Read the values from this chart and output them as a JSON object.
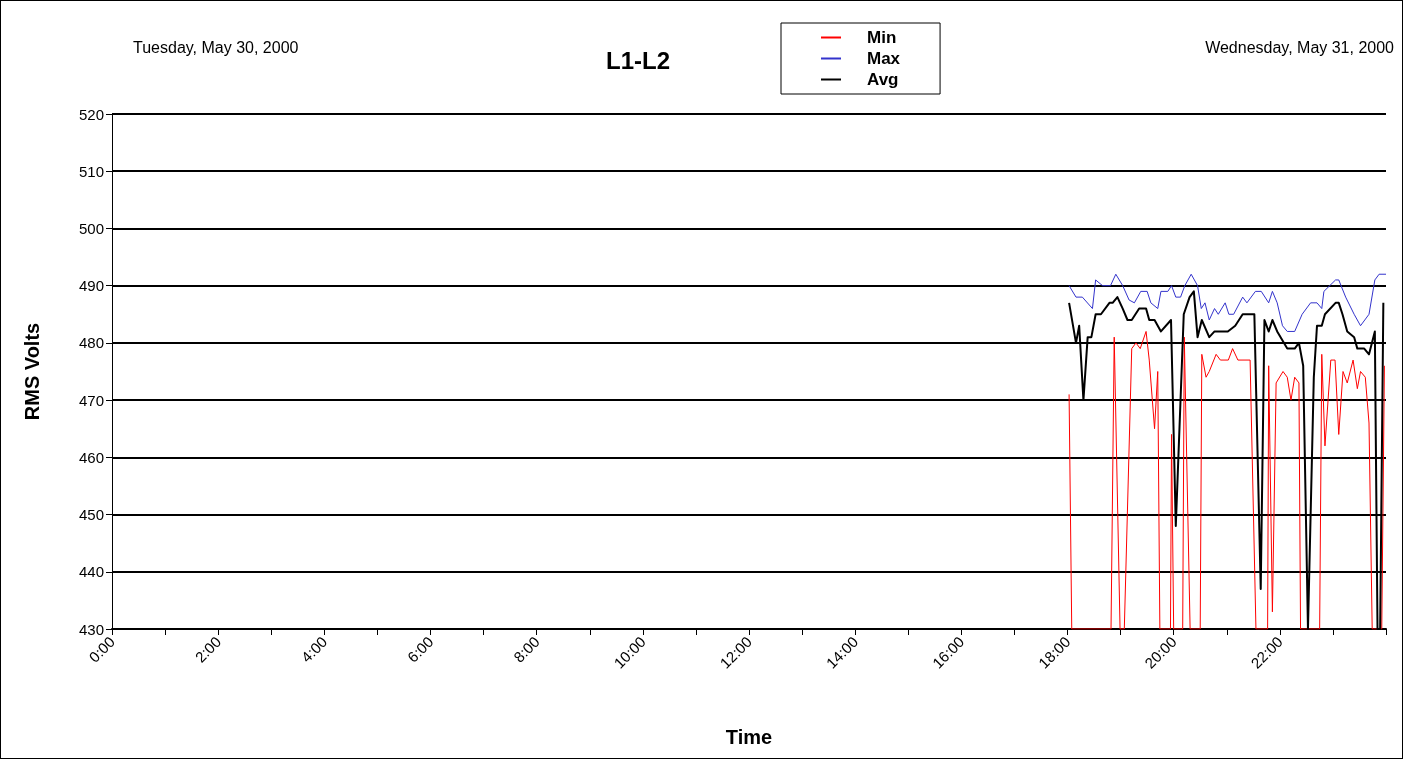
{
  "chart_data": {
    "type": "line",
    "title": "L1-L2",
    "xlabel": "Time",
    "ylabel": "RMS Volts",
    "annotations": [
      "Tuesday, May 30, 2000",
      "Wednesday, May 31, 2000"
    ],
    "xlim": [
      0,
      24
    ],
    "xticks": [
      {
        "value": 0,
        "label": "0:00"
      },
      {
        "value": 1,
        "label": null
      },
      {
        "value": 2,
        "label": "2:00"
      },
      {
        "value": 3,
        "label": null
      },
      {
        "value": 4,
        "label": "4:00"
      },
      {
        "value": 5,
        "label": null
      },
      {
        "value": 6,
        "label": "6:00"
      },
      {
        "value": 7,
        "label": null
      },
      {
        "value": 8,
        "label": "8:00"
      },
      {
        "value": 9,
        "label": null
      },
      {
        "value": 10,
        "label": "10:00"
      },
      {
        "value": 11,
        "label": null
      },
      {
        "value": 12,
        "label": "12:00"
      },
      {
        "value": 13,
        "label": null
      },
      {
        "value": 14,
        "label": "14:00"
      },
      {
        "value": 15,
        "label": null
      },
      {
        "value": 16,
        "label": "16:00"
      },
      {
        "value": 17,
        "label": null
      },
      {
        "value": 18,
        "label": "18:00"
      },
      {
        "value": 19,
        "label": null
      },
      {
        "value": 20,
        "label": "20:00"
      },
      {
        "value": 21,
        "label": null
      },
      {
        "value": 22,
        "label": "22:00"
      },
      {
        "value": 23,
        "label": null
      },
      {
        "value": 24,
        "label": null
      }
    ],
    "ylim": [
      430,
      520
    ],
    "yticks": [
      430,
      440,
      450,
      460,
      470,
      480,
      490,
      500,
      510,
      520
    ],
    "grid": "y",
    "legend": "top",
    "marker": "none",
    "line_style": "solid",
    "series": [
      {
        "name": "Min",
        "color": "#ff0000",
        "x": [
          18.03,
          18.08,
          18.82,
          18.88,
          18.99,
          19.07,
          19.21,
          19.29,
          19.37,
          19.48,
          19.54,
          19.64,
          19.7,
          19.74,
          19.94,
          19.96,
          20.0,
          20.17,
          20.2,
          20.31,
          20.5,
          20.53,
          20.61,
          20.67,
          20.8,
          20.88,
          21.03,
          21.11,
          21.21,
          21.44,
          21.55,
          21.77,
          21.79,
          21.86,
          21.93,
          22.06,
          22.14,
          22.21,
          22.28,
          22.36,
          22.39,
          22.75,
          22.79,
          22.85,
          22.96,
          23.04,
          23.11,
          23.19,
          23.27,
          23.38,
          23.46,
          23.52,
          23.61,
          23.68,
          23.74,
          23.92,
          23.97
        ],
        "values": [
          471,
          430,
          430,
          481,
          430,
          430,
          479,
          480,
          479,
          482,
          477,
          465,
          475,
          430,
          430,
          464,
          430,
          430,
          481,
          430,
          430,
          478,
          474,
          475,
          478,
          477,
          477,
          479,
          477,
          477,
          430,
          430,
          476,
          433,
          473,
          475,
          474,
          470,
          474,
          473,
          430,
          430,
          478,
          462,
          477,
          477,
          464,
          475,
          473,
          477,
          472,
          475,
          474,
          466,
          430,
          430,
          476
        ]
      },
      {
        "name": "Max",
        "color": "#3333cc",
        "x": [
          18.03,
          18.16,
          18.28,
          18.47,
          18.53,
          18.66,
          18.81,
          18.91,
          19.04,
          19.16,
          19.26,
          19.38,
          19.5,
          19.57,
          19.7,
          19.76,
          19.89,
          19.96,
          20.04,
          20.13,
          20.21,
          20.33,
          20.45,
          20.52,
          20.59,
          20.67,
          20.77,
          20.84,
          20.97,
          21.04,
          21.13,
          21.3,
          21.38,
          21.54,
          21.65,
          21.79,
          21.86,
          21.95,
          22.05,
          22.14,
          22.28,
          22.42,
          22.58,
          22.7,
          22.79,
          22.83,
          23.05,
          23.11,
          23.24,
          23.4,
          23.52,
          23.68,
          23.79,
          23.87,
          24.0
        ],
        "values": [
          490,
          488,
          488,
          486,
          491,
          490,
          490,
          492,
          490,
          487.5,
          487,
          489,
          489,
          487,
          486,
          489,
          489,
          490,
          488,
          488,
          490,
          492,
          490,
          486,
          487,
          484,
          486,
          485,
          487,
          485,
          485,
          488,
          487,
          489,
          489,
          487,
          489,
          487,
          483,
          482,
          482,
          485,
          487,
          487,
          486,
          489,
          491,
          491,
          488,
          485,
          483,
          485,
          491,
          492,
          492
        ]
      },
      {
        "name": "Avg",
        "color": "#000000",
        "x": [
          18.03,
          18.16,
          18.22,
          18.3,
          18.38,
          18.45,
          18.53,
          18.63,
          18.79,
          18.85,
          18.94,
          19.04,
          19.13,
          19.21,
          19.35,
          19.48,
          19.54,
          19.64,
          19.76,
          19.95,
          20.04,
          20.19,
          20.3,
          20.38,
          20.45,
          20.53,
          20.67,
          20.77,
          20.86,
          21.02,
          21.16,
          21.3,
          21.52,
          21.64,
          21.71,
          21.79,
          21.86,
          21.95,
          22.14,
          22.28,
          22.36,
          22.44,
          22.53,
          22.64,
          22.7,
          22.79,
          22.85,
          23.05,
          23.11,
          23.18,
          23.27,
          23.4,
          23.46,
          23.59,
          23.68,
          23.79,
          23.84,
          23.89,
          23.95
        ],
        "values": [
          487,
          480,
          483,
          470,
          481,
          481,
          485,
          485,
          487,
          487,
          488,
          486,
          484,
          484,
          486,
          486,
          484,
          484,
          482,
          484,
          448,
          485,
          488,
          489,
          481,
          484,
          481,
          482,
          482,
          482,
          483,
          485,
          485,
          437,
          484,
          482,
          484,
          482,
          479,
          479,
          480,
          476,
          430,
          474,
          483,
          483,
          485,
          487,
          487,
          485,
          482,
          481,
          479,
          479,
          478,
          482,
          430,
          430,
          487
        ]
      }
    ]
  }
}
